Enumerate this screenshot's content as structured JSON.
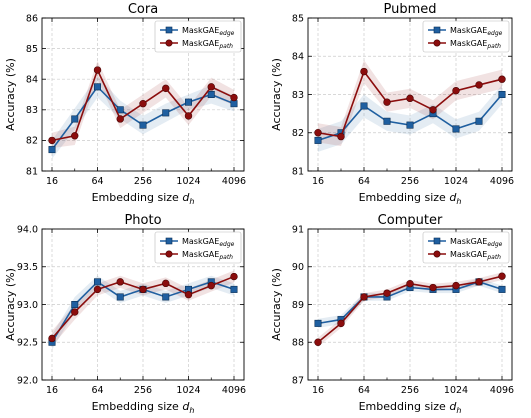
{
  "figure": {
    "colors": {
      "edge": "#1f5fa0",
      "path": "#8b0d0d",
      "grid": "#cccccc"
    },
    "legend": {
      "placement": "top-right"
    }
  },
  "chart_data": [
    {
      "type": "line",
      "title": "Cora",
      "xlabel": "Embedding size",
      "xlabel_symbol": "d",
      "xlabel_subscript": "h",
      "ylabel": "Accuracy (%)",
      "x_scale": "log2",
      "x": [
        16,
        32,
        64,
        128,
        256,
        512,
        1024,
        2048,
        4096
      ],
      "xticks": [
        "16",
        "64",
        "256",
        "1024",
        "4096"
      ],
      "xtick_values": [
        16,
        64,
        256,
        1024,
        4096
      ],
      "ylim": [
        81,
        86
      ],
      "yticks": [
        "81",
        "82",
        "83",
        "84",
        "85",
        "86"
      ],
      "ytick_values": [
        81,
        82,
        83,
        84,
        85,
        86
      ],
      "grid": true,
      "series": [
        {
          "key": "edge",
          "name": "MaskGAE",
          "name_sub": "edge",
          "marker": "square",
          "values": [
            81.7,
            82.7,
            83.75,
            83.0,
            82.5,
            82.9,
            83.25,
            83.5,
            83.2
          ],
          "std": [
            0.3,
            0.35,
            0.35,
            0.3,
            0.3,
            0.3,
            0.25,
            0.3,
            0.25
          ]
        },
        {
          "key": "path",
          "name": "MaskGAE",
          "name_sub": "path",
          "marker": "circle",
          "values": [
            82.0,
            82.15,
            84.3,
            82.7,
            83.2,
            83.7,
            82.8,
            83.75,
            83.4
          ],
          "std": [
            0.25,
            0.3,
            0.3,
            0.3,
            0.3,
            0.3,
            0.3,
            0.3,
            0.25
          ]
        }
      ]
    },
    {
      "type": "line",
      "title": "Pubmed",
      "xlabel": "Embedding size",
      "xlabel_symbol": "d",
      "xlabel_subscript": "h",
      "ylabel": "Accuracy (%)",
      "x_scale": "log2",
      "x": [
        16,
        32,
        64,
        128,
        256,
        512,
        1024,
        2048,
        4096
      ],
      "xticks": [
        "16",
        "64",
        "256",
        "1024",
        "4096"
      ],
      "xtick_values": [
        16,
        64,
        256,
        1024,
        4096
      ],
      "ylim": [
        81,
        85
      ],
      "yticks": [
        "81",
        "82",
        "83",
        "84",
        "85"
      ],
      "ytick_values": [
        81,
        82,
        83,
        84,
        85
      ],
      "grid": true,
      "series": [
        {
          "key": "edge",
          "name": "MaskGAE",
          "name_sub": "edge",
          "marker": "square",
          "values": [
            81.8,
            82.0,
            82.7,
            82.3,
            82.2,
            82.5,
            82.1,
            82.3,
            83.0
          ],
          "std": [
            0.3,
            0.3,
            0.3,
            0.25,
            0.25,
            0.25,
            0.25,
            0.25,
            0.25
          ]
        },
        {
          "key": "path",
          "name": "MaskGAE",
          "name_sub": "path",
          "marker": "circle",
          "values": [
            82.0,
            81.9,
            83.6,
            82.8,
            82.9,
            82.6,
            83.1,
            83.25,
            83.4
          ],
          "std": [
            0.25,
            0.25,
            0.3,
            0.25,
            0.25,
            0.25,
            0.25,
            0.25,
            0.25
          ]
        }
      ]
    },
    {
      "type": "line",
      "title": "Photo",
      "xlabel": "Embedding size",
      "xlabel_symbol": "d",
      "xlabel_subscript": "h",
      "ylabel": "Accuracy (%)",
      "x_scale": "log2",
      "x": [
        16,
        32,
        64,
        128,
        256,
        512,
        1024,
        2048,
        4096
      ],
      "xticks": [
        "16",
        "64",
        "256",
        "1024",
        "4096"
      ],
      "xtick_values": [
        16,
        64,
        256,
        1024,
        4096
      ],
      "ylim": [
        92.0,
        94.0
      ],
      "yticks": [
        "92.0",
        "92.5",
        "93.0",
        "93.5",
        "94.0"
      ],
      "ytick_values": [
        92.0,
        92.5,
        93.0,
        93.5,
        94.0
      ],
      "grid": true,
      "series": [
        {
          "key": "edge",
          "name": "MaskGAE",
          "name_sub": "edge",
          "marker": "square",
          "values": [
            92.5,
            93.0,
            93.3,
            93.1,
            93.2,
            93.1,
            93.2,
            93.3,
            93.2
          ],
          "std": [
            0.1,
            0.1,
            0.08,
            0.08,
            0.08,
            0.08,
            0.08,
            0.08,
            0.08
          ]
        },
        {
          "key": "path",
          "name": "MaskGAE",
          "name_sub": "path",
          "marker": "circle",
          "values": [
            92.55,
            92.9,
            93.2,
            93.3,
            93.2,
            93.28,
            93.13,
            93.25,
            93.37
          ],
          "std": [
            0.1,
            0.1,
            0.08,
            0.08,
            0.08,
            0.08,
            0.08,
            0.08,
            0.08
          ]
        }
      ]
    },
    {
      "type": "line",
      "title": "Computer",
      "xlabel": "Embedding size",
      "xlabel_symbol": "d",
      "xlabel_subscript": "h",
      "ylabel": "Accuracy (%)",
      "x_scale": "log2",
      "x": [
        16,
        32,
        64,
        128,
        256,
        512,
        1024,
        2048,
        4096
      ],
      "xticks": [
        "16",
        "64",
        "256",
        "1024",
        "4096"
      ],
      "xtick_values": [
        16,
        64,
        256,
        1024,
        4096
      ],
      "ylim": [
        87,
        91
      ],
      "yticks": [
        "87",
        "88",
        "89",
        "90",
        "91"
      ],
      "ytick_values": [
        87,
        88,
        89,
        90,
        91
      ],
      "grid": true,
      "series": [
        {
          "key": "edge",
          "name": "MaskGAE",
          "name_sub": "edge",
          "marker": "square",
          "values": [
            88.5,
            88.6,
            89.2,
            89.2,
            89.45,
            89.4,
            89.4,
            89.6,
            89.4
          ],
          "std": [
            0.12,
            0.12,
            0.1,
            0.1,
            0.1,
            0.1,
            0.1,
            0.1,
            0.1
          ]
        },
        {
          "key": "path",
          "name": "MaskGAE",
          "name_sub": "path",
          "marker": "circle",
          "values": [
            88.0,
            88.5,
            89.2,
            89.3,
            89.55,
            89.45,
            89.5,
            89.6,
            89.75
          ],
          "std": [
            0.12,
            0.12,
            0.1,
            0.1,
            0.1,
            0.1,
            0.1,
            0.1,
            0.1
          ]
        }
      ]
    }
  ]
}
